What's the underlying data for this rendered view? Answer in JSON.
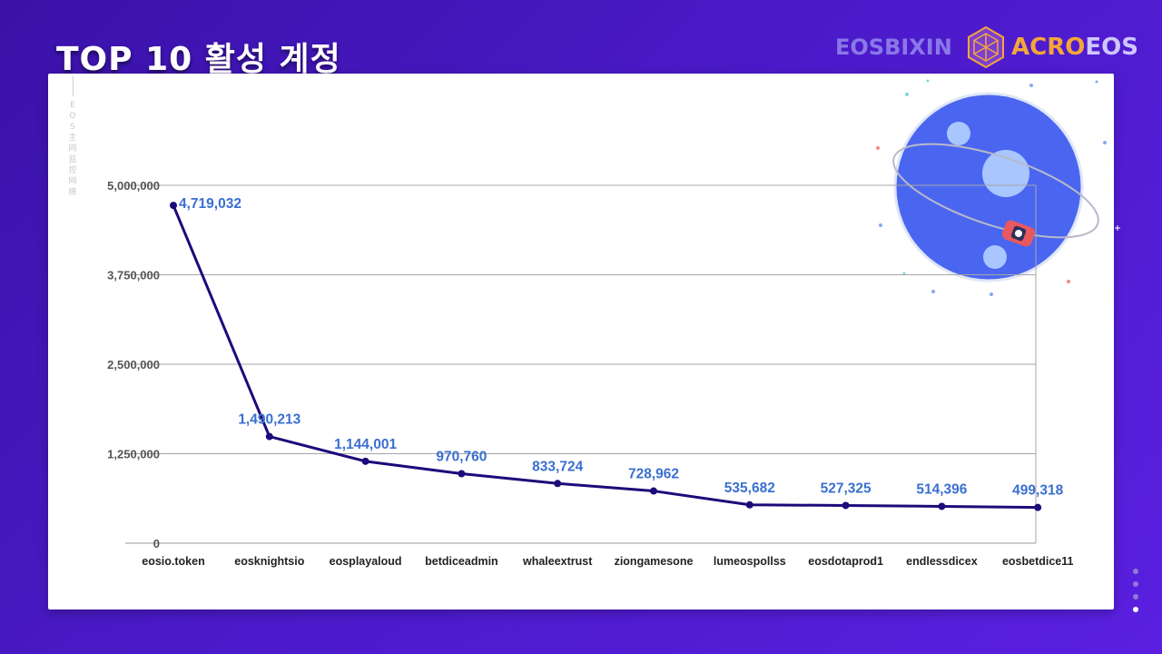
{
  "slide": {
    "title": "TOP 10 활성 계정",
    "brand_left": "EOSBIXIN",
    "brand_right_part1": "ACRO",
    "brand_right_part2": "EOS",
    "watermark": "EOS主网监控网络"
  },
  "colors": {
    "line": "#1d0a7a",
    "label": "#3a6fd0",
    "grid": "#a6a6a6",
    "planet": "#4a66f0"
  },
  "chart_data": {
    "type": "line",
    "title": "",
    "xlabel": "",
    "ylabel": "",
    "ylim": [
      0,
      5000000
    ],
    "yticks": [
      0,
      1250000,
      2500000,
      3750000,
      5000000
    ],
    "ytick_labels": [
      "0",
      "1,250,000",
      "2,500,000",
      "3,750,000",
      "5,000,000"
    ],
    "categories": [
      "eosio.token",
      "eosknightsio",
      "eosplayaloud",
      "betdiceadmin",
      "whaleextrust",
      "ziongamesone",
      "lumeospollss",
      "eosdotaprod1",
      "endlessdicex",
      "eosbetdice11"
    ],
    "values": [
      4719032,
      1490213,
      1144001,
      970760,
      833724,
      728962,
      535682,
      527325,
      514396,
      499318
    ],
    "value_labels": [
      "4,719,032",
      "1,490,213",
      "1,144,001",
      "970,760",
      "833,724",
      "728,962",
      "535,682",
      "527,325",
      "514,396",
      "499,318"
    ],
    "grid": true,
    "legend": "none"
  },
  "pager": {
    "count": 4,
    "active": 3
  }
}
